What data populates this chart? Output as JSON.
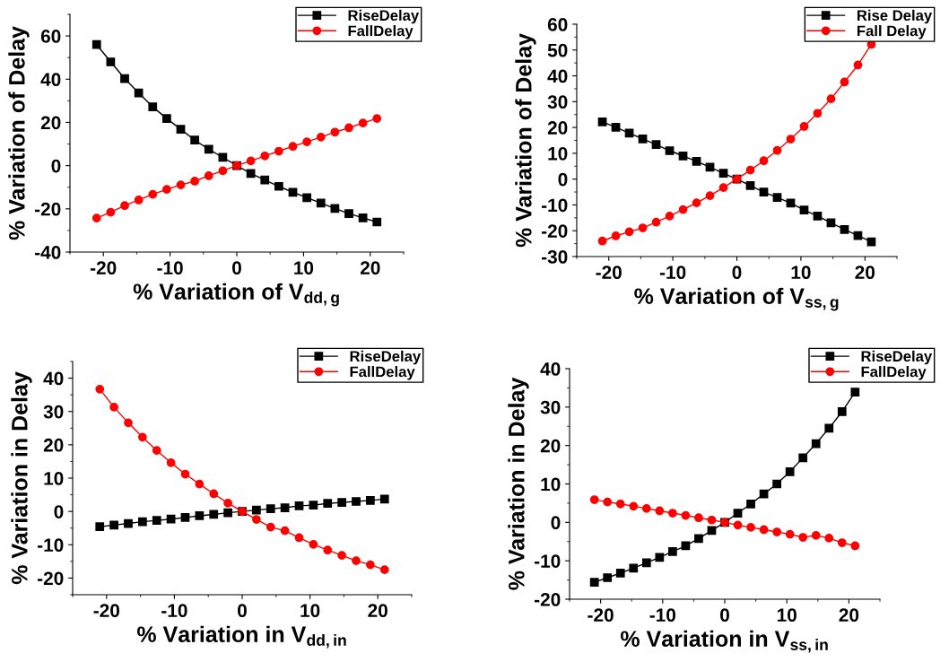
{
  "chart_data": [
    {
      "type": "line",
      "xlabel": "% Variation of V$_{dd,g}$",
      "ylabel": "% Variation of Delay",
      "xlim": [
        -25,
        25
      ],
      "xticks": [
        -20,
        -10,
        0,
        10,
        20
      ],
      "ylim": [
        -40,
        70
      ],
      "yticks": [
        -40,
        -20,
        0,
        20,
        40,
        60
      ],
      "legend": "top right",
      "line_style": "solid",
      "grid": false,
      "x": [
        -21,
        -18.9,
        -16.8,
        -14.7,
        -12.6,
        -10.5,
        -8.4,
        -6.3,
        -4.2,
        -2.1,
        0,
        2.1,
        4.2,
        6.3,
        8.4,
        10.5,
        12.6,
        14.7,
        16.8,
        18.9,
        21
      ],
      "series": [
        {
          "name": "RiseDelay",
          "color": "#000000",
          "marker": "square",
          "values": [
            56,
            48,
            40.3,
            33.6,
            27.2,
            21.8,
            16.8,
            11.8,
            7.6,
            3.8,
            0,
            -3.6,
            -6.6,
            -9.6,
            -12.3,
            -14.8,
            -17.3,
            -19.8,
            -22.2,
            -24.2,
            -26.1
          ]
        },
        {
          "name": "FallDelay",
          "color": "#ff0000",
          "marker": "circle",
          "values": [
            -24.3,
            -21.6,
            -18.5,
            -15.9,
            -13.3,
            -11.0,
            -8.9,
            -7.2,
            -4.7,
            -2.4,
            0,
            2.2,
            4.5,
            6.7,
            8.9,
            11.0,
            13.2,
            15.5,
            17.5,
            19.7,
            21.8
          ]
        }
      ]
    },
    {
      "type": "line",
      "xlabel": "% Variation of V$_{ss,g}$",
      "ylabel": "% Variation of Delay",
      "xlim": [
        -25,
        25
      ],
      "xticks": [
        -20,
        -10,
        0,
        10,
        20
      ],
      "ylim": [
        -30,
        60
      ],
      "yticks": [
        -30,
        -20,
        -10,
        0,
        10,
        20,
        30,
        40,
        50,
        60
      ],
      "legend": "top right",
      "line_style": "solid",
      "grid": false,
      "x": [
        -21,
        -18.9,
        -16.8,
        -14.7,
        -12.6,
        -10.5,
        -8.4,
        -6.3,
        -4.2,
        -2.1,
        0,
        2.1,
        4.2,
        6.3,
        8.4,
        10.5,
        12.6,
        14.7,
        16.8,
        18.9,
        21
      ],
      "series": [
        {
          "name": "Rise Delay",
          "color": "#000000",
          "marker": "square",
          "values": [
            22.2,
            20.1,
            17.8,
            15.6,
            13.4,
            11.0,
            9.0,
            6.9,
            4.6,
            2.3,
            0,
            -2.5,
            -5.0,
            -7.1,
            -9.3,
            -12.0,
            -14.3,
            -16.9,
            -19.5,
            -21.9,
            -24.3
          ]
        },
        {
          "name": "Fall Delay",
          "color": "#ff0000",
          "marker": "circle",
          "values": [
            -24.0,
            -22.0,
            -20.4,
            -18.9,
            -16.7,
            -14.3,
            -11.8,
            -9.2,
            -6.4,
            -3.3,
            0,
            3.5,
            7.1,
            11.1,
            15.5,
            20.4,
            25.5,
            31.1,
            37.6,
            44.2,
            52.2
          ]
        }
      ]
    },
    {
      "type": "line",
      "xlabel": "% Variation in V$_{dd,in}$",
      "ylabel": "% Variation in Delay",
      "xlim": [
        -25,
        25
      ],
      "xticks": [
        -20,
        -10,
        0,
        10,
        20
      ],
      "ylim": [
        -25,
        45
      ],
      "yticks": [
        -20,
        -10,
        0,
        10,
        20,
        30,
        40
      ],
      "legend": "top right",
      "line_style": "solid",
      "grid": false,
      "x": [
        -21,
        -18.9,
        -16.8,
        -14.7,
        -12.6,
        -10.5,
        -8.4,
        -6.3,
        -4.2,
        -2.1,
        0,
        2.1,
        4.2,
        6.3,
        8.4,
        10.5,
        12.6,
        14.7,
        16.8,
        18.9,
        21
      ],
      "series": [
        {
          "name": "RiseDelay",
          "color": "#000000",
          "marker": "square",
          "values": [
            -4.6,
            -4.1,
            -3.6,
            -3.1,
            -2.7,
            -2.3,
            -1.8,
            -1.3,
            -0.9,
            -0.4,
            0,
            0.4,
            0.8,
            1.1,
            1.7,
            1.9,
            2.4,
            2.7,
            3.0,
            3.3,
            3.7
          ]
        },
        {
          "name": "FallDelay",
          "color": "#ff0000",
          "marker": "circle",
          "values": [
            36.7,
            31.3,
            26.6,
            22.3,
            18.3,
            14.6,
            11.2,
            8.2,
            5.3,
            2.5,
            0,
            -2.4,
            -4.7,
            -5.8,
            -7.9,
            -9.9,
            -11.6,
            -13.2,
            -14.8,
            -16.0,
            -17.5
          ]
        }
      ]
    },
    {
      "type": "line",
      "xlabel": "% Variation in V$_{ss,in}$",
      "ylabel": "% Variation in Delay",
      "xlim": [
        -25,
        25
      ],
      "xticks": [
        -20,
        -10,
        0,
        10,
        20
      ],
      "ylim": [
        -20,
        40
      ],
      "yticks": [
        -20,
        -10,
        0,
        10,
        20,
        30,
        40
      ],
      "legend": "top right",
      "line_style": "solid",
      "grid": false,
      "x": [
        -21,
        -18.9,
        -16.8,
        -14.7,
        -12.6,
        -10.5,
        -8.4,
        -6.3,
        -4.2,
        -2.1,
        0,
        2.1,
        4.2,
        6.3,
        8.4,
        10.5,
        12.6,
        14.7,
        16.8,
        18.9,
        21
      ],
      "series": [
        {
          "name": "RiseDelay",
          "color": "#000000",
          "marker": "square",
          "values": [
            -15.6,
            -14.4,
            -13.2,
            -11.9,
            -10.5,
            -9.1,
            -7.6,
            -6.1,
            -4.2,
            -2.1,
            0,
            2.4,
            4.8,
            7.4,
            10.0,
            13.2,
            16.8,
            20.5,
            24.5,
            28.8,
            33.9
          ]
        },
        {
          "name": "FallDelay",
          "color": "#ff0000",
          "marker": "circle",
          "values": [
            5.9,
            5.3,
            4.8,
            4.2,
            3.6,
            3.0,
            2.4,
            1.8,
            1.2,
            0.6,
            0,
            -0.7,
            -1.3,
            -1.9,
            -2.5,
            -3.1,
            -3.9,
            -3.4,
            -4.1,
            -5.3,
            -6.1
          ]
        }
      ]
    }
  ]
}
